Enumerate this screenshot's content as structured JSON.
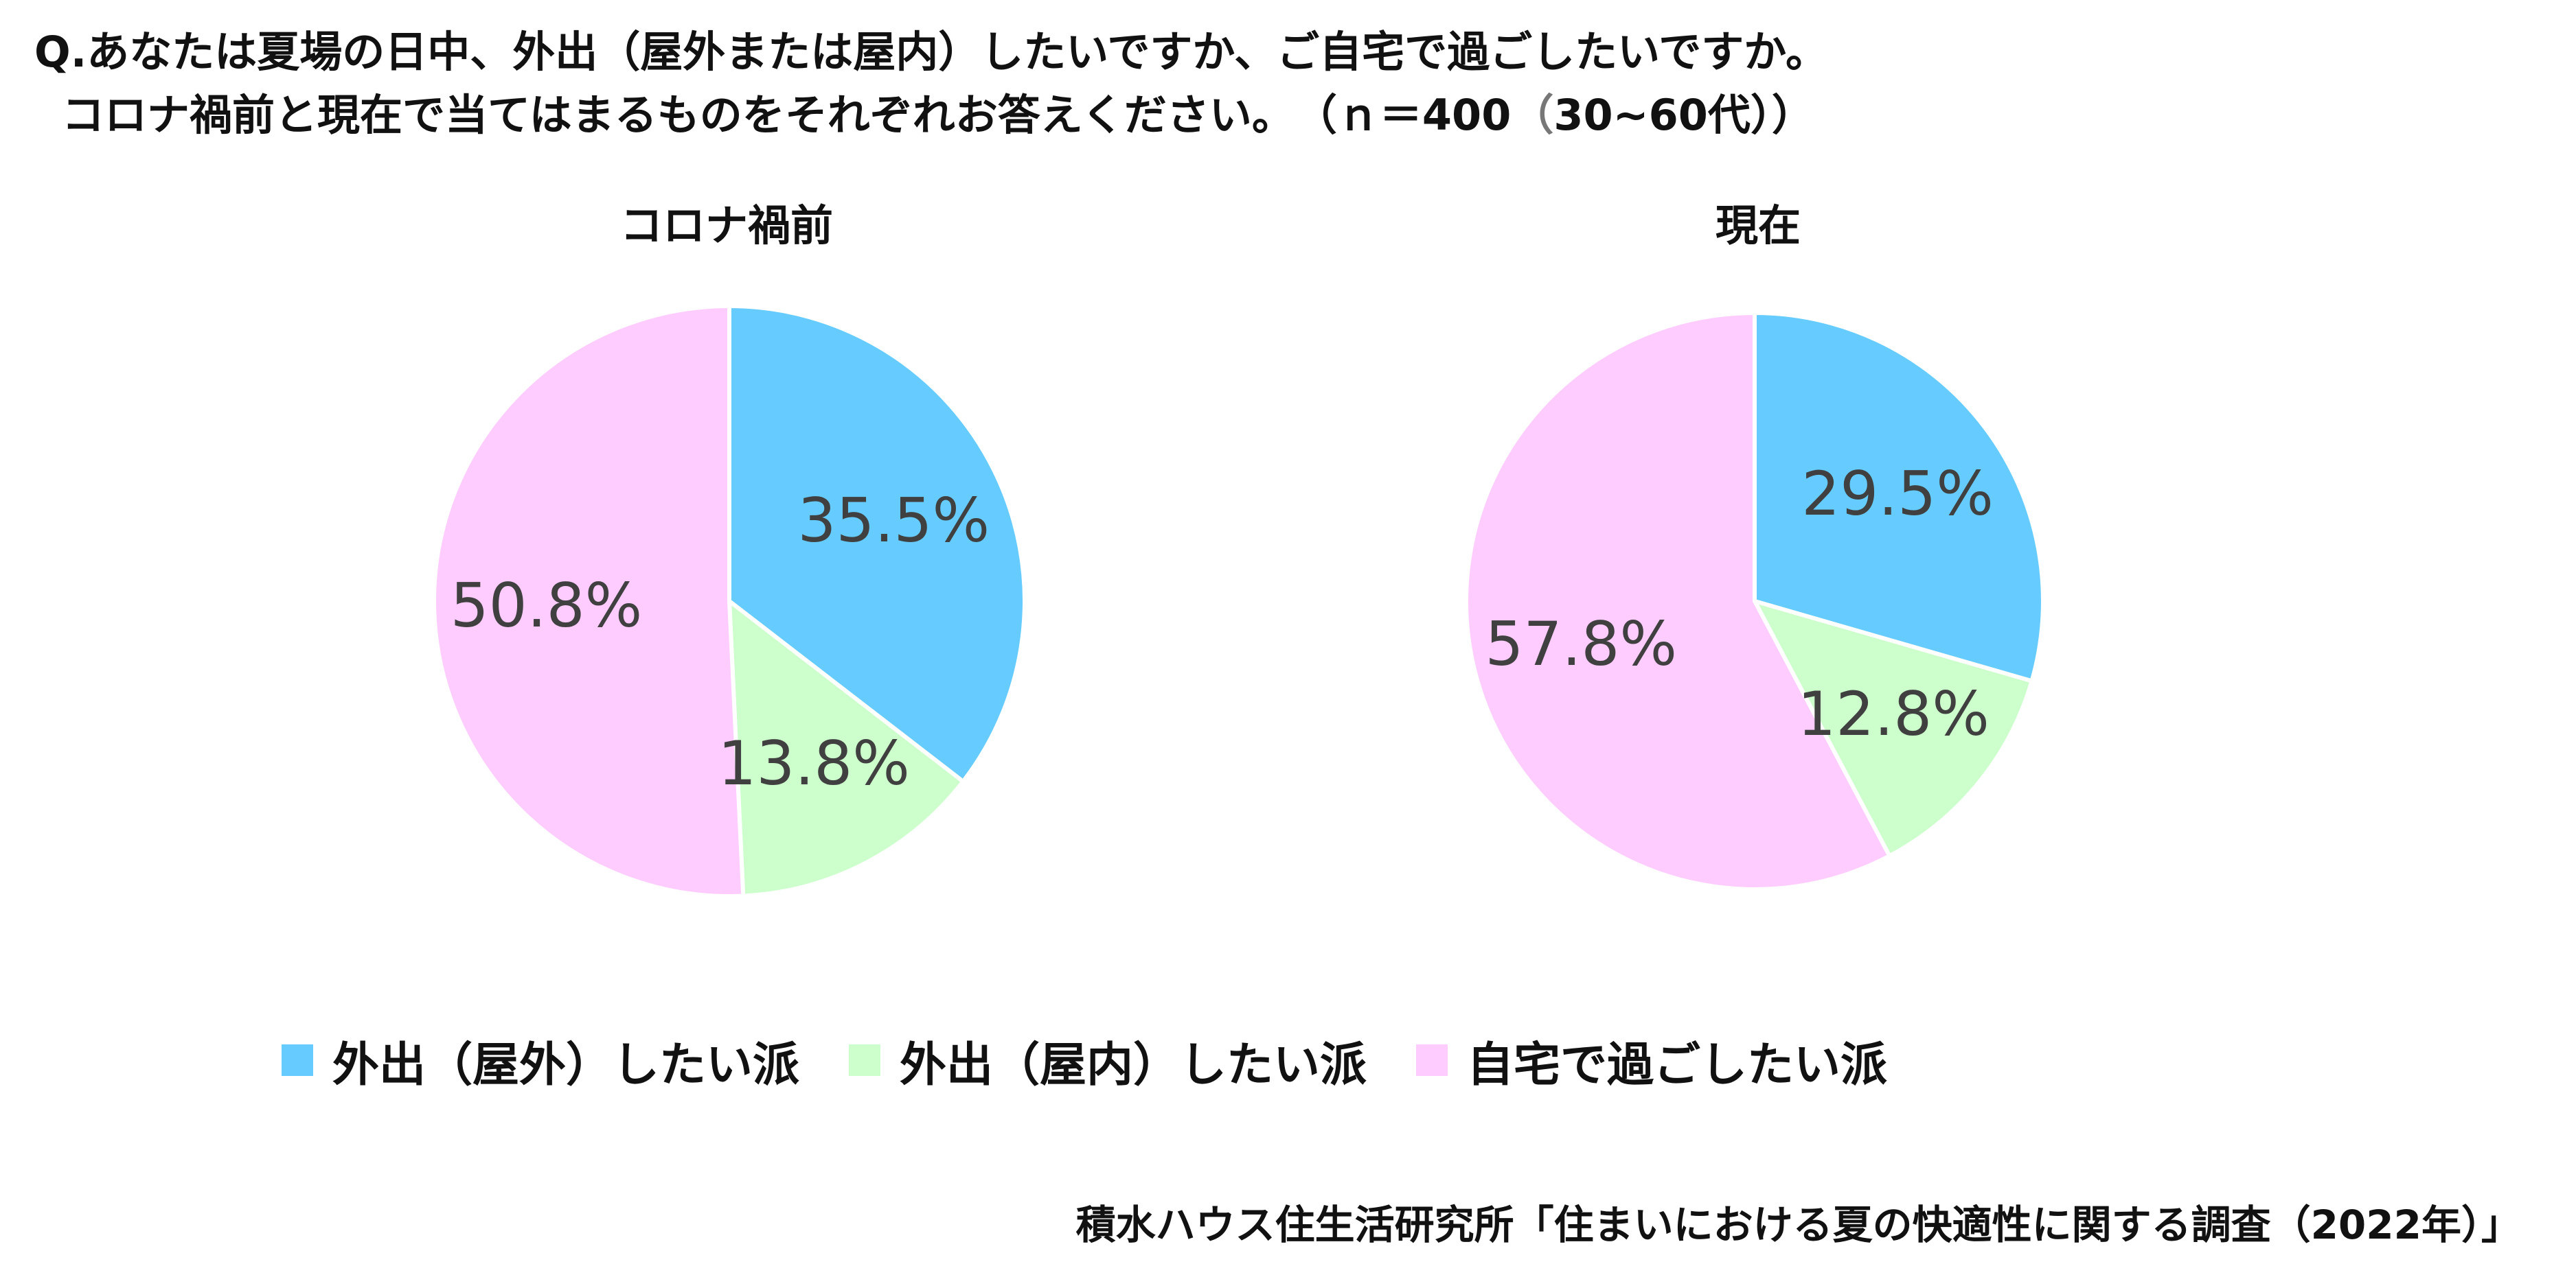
{
  "question": {
    "line1": "Q.あなたは夏場の日中、外出（屋外または屋内）したいですか、ご自宅で過ごしたいですか。",
    "line2": "コロナ禍前と現在で当てはまるものをそれぞれお答えください。",
    "n_label": "（ｎ＝400",
    "paren_open": "（",
    "age_group": "30~60代",
    "paren_close": "））"
  },
  "legend": [
    {
      "label": "外出（屋外）したい派",
      "color": "#66CCFF"
    },
    {
      "label": "外出（屋内）したい派",
      "color": "#CCFFCC"
    },
    {
      "label": "自宅で過ごしたい派",
      "color": "#FFCCFF"
    }
  ],
  "chart_data": [
    {
      "type": "pie",
      "title": "コロナ禍前",
      "categories": [
        "外出（屋外）したい派",
        "外出（屋内）したい派",
        "自宅で過ごしたい派"
      ],
      "values": [
        35.5,
        13.8,
        50.8
      ],
      "labels": [
        "35.5%",
        "13.8%",
        "50.8%"
      ],
      "colors": [
        "#66CCFF",
        "#CCFFCC",
        "#FFCCFF"
      ]
    },
    {
      "type": "pie",
      "title": "現在",
      "categories": [
        "外出（屋外）したい派",
        "外出（屋内）したい派",
        "自宅で過ごしたい派"
      ],
      "values": [
        29.5,
        12.8,
        57.8
      ],
      "labels": [
        "29.5%",
        "12.8%",
        "57.8%"
      ],
      "colors": [
        "#66CCFF",
        "#CCFFCC",
        "#FFCCFF"
      ]
    }
  ],
  "source": "積水ハウス住生活研究所「住まいにおける夏の快適性に関する調査（2022年）」"
}
